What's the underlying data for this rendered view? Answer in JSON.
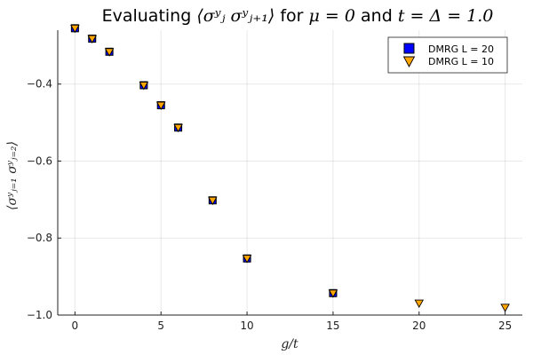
{
  "chart_data": {
    "type": "scatter",
    "title_prefix": "Evaluating ",
    "title_math": "⟨σʸⱼ σʸⱼ₊₁⟩",
    "title_mid1": " for ",
    "title_mu": "μ = 0",
    "title_mid2": " and ",
    "title_t": "t = Δ = 1.0",
    "xlabel": "g/t",
    "ylabel": "⟨σʸⱼ₌₁ σʸⱼ₌₂⟩",
    "xlim": [
      -1,
      26
    ],
    "ylim": [
      -1.0,
      -0.26
    ],
    "xticks": [
      0,
      5,
      10,
      15,
      20,
      25
    ],
    "xtick_labels": [
      "0",
      "5",
      "10",
      "15",
      "20",
      "25"
    ],
    "yticks": [
      -1.0,
      -0.8,
      -0.6,
      -0.4
    ],
    "ytick_labels": [
      "−1.0",
      "−0.8",
      "−0.6",
      "−0.4"
    ],
    "grid": true,
    "legend_position": "top-right",
    "series": [
      {
        "name": "DMRG L = 20",
        "marker": "square",
        "color": "#0000ff",
        "x": [
          0,
          1,
          2,
          4,
          5,
          6,
          8,
          10,
          15
        ],
        "y": [
          -0.255,
          -0.282,
          -0.316,
          -0.403,
          -0.455,
          -0.513,
          -0.702,
          -0.853,
          -0.943
        ]
      },
      {
        "name": "DMRG L = 10",
        "marker": "triangle-down",
        "color": "#ffa500",
        "x": [
          0,
          1,
          2,
          4,
          5,
          6,
          8,
          10,
          15,
          20,
          25
        ],
        "y": [
          -0.255,
          -0.282,
          -0.316,
          -0.403,
          -0.455,
          -0.513,
          -0.702,
          -0.853,
          -0.943,
          -0.969,
          -0.98
        ]
      }
    ]
  }
}
